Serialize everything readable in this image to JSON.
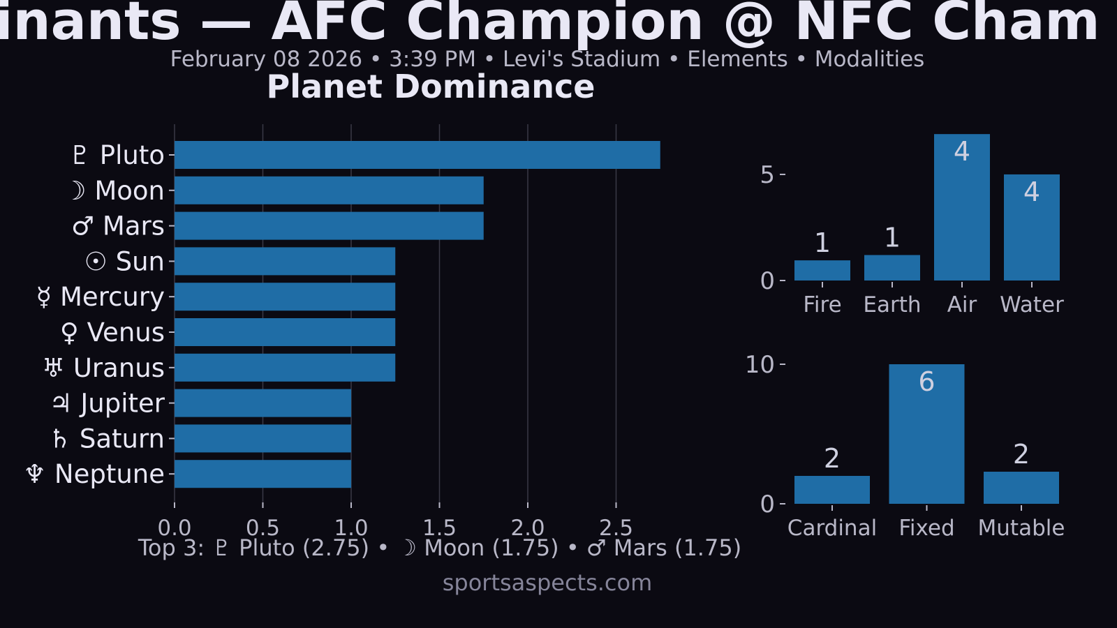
{
  "header": {
    "title": "inants — AFC Champion @ NFC Cham",
    "subtitle": "February 08 2026 • 3:39 PM • Levi's Stadium • Elements • Modalities"
  },
  "footer": {
    "top3": "Top 3: ♇ Pluto (2.75) • ☽ Moon (1.75) • ♂ Mars (1.75)",
    "site": "sportsaspects.com"
  },
  "colors": {
    "bar": "#1f6da6",
    "background": "#0b0a12",
    "text": "#e9e8f5",
    "muted": "#b9b8c8",
    "grid": "#3a3946"
  },
  "chart_data": [
    {
      "type": "bar",
      "orientation": "horizontal",
      "title": "Planet Dominance",
      "categories": [
        "♇ Pluto",
        "☽ Moon",
        "♂ Mars",
        "☉ Sun",
        "☿ Mercury",
        "♀ Venus",
        "♅ Uranus",
        "♃ Jupiter",
        "♄ Saturn",
        "♆ Neptune"
      ],
      "values": [
        2.75,
        1.75,
        1.75,
        1.25,
        1.25,
        1.25,
        1.25,
        1.0,
        1.0,
        1.0
      ],
      "xlim": [
        0,
        3.0
      ],
      "xticks": [
        "0.0",
        "0.5",
        "1.0",
        "1.5",
        "2.0",
        "2.5"
      ],
      "grid": "vertical"
    },
    {
      "type": "bar",
      "title": "",
      "categories": [
        "Fire",
        "Earth",
        "Air",
        "Water"
      ],
      "values": [
        1,
        1,
        4,
        4
      ],
      "bar_heights": [
        0.95,
        1.2,
        6.9,
        5.0
      ],
      "data_labels": [
        "1",
        "1",
        "4",
        "4"
      ],
      "yticks": [
        "0",
        "5"
      ],
      "ylim": [
        0,
        7.3
      ]
    },
    {
      "type": "bar",
      "title": "",
      "categories": [
        "Cardinal",
        "Fixed",
        "Mutable"
      ],
      "values": [
        2,
        6,
        2
      ],
      "bar_heights": [
        2.0,
        10.0,
        2.3
      ],
      "data_labels": [
        "2",
        "6",
        "2"
      ],
      "yticks": [
        "0",
        "10"
      ],
      "ylim": [
        0,
        10.4
      ]
    }
  ]
}
